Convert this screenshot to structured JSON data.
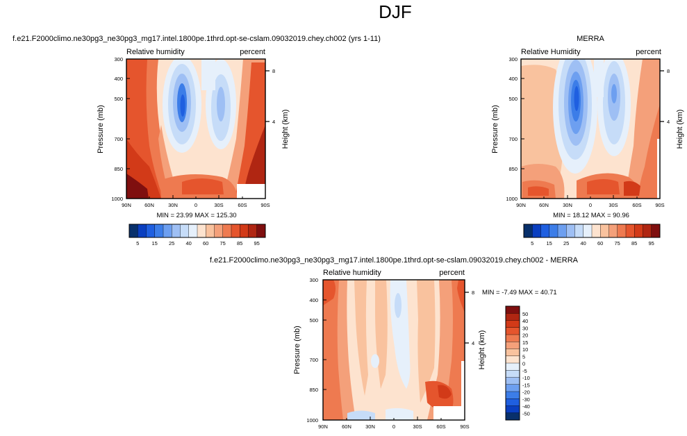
{
  "page_title": "DJF",
  "chart_data": [
    {
      "type": "heatmap",
      "title": "f.e21.F2000climo.ne30pg3_ne30pg3_mg17.intel.1800pe.1thrd.opt-se-cslam.09032019.chey.ch002 (yrs 1-11)",
      "left_label": "Relative humidity",
      "right_label": "percent",
      "ylabel": "Pressure (mb)",
      "y2label": "Height (km)",
      "x_ticks": [
        "90N",
        "60N",
        "30N",
        "0",
        "30S",
        "60S",
        "90S"
      ],
      "y_ticks": [
        "300",
        "400",
        "500",
        "700",
        "850",
        "1000"
      ],
      "y2_ticks": [
        "8",
        "4"
      ],
      "stats": "MIN = 23.99  MAX = 125.30",
      "colorbar_ticks": [
        "5",
        "15",
        "25",
        "40",
        "60",
        "75",
        "85",
        "95"
      ],
      "levels": [
        5,
        10,
        15,
        20,
        25,
        30,
        40,
        50,
        60,
        70,
        75,
        80,
        85,
        90,
        95
      ]
    },
    {
      "type": "heatmap",
      "title": "MERRA",
      "left_label": "Relative Humidity",
      "right_label": "percent",
      "ylabel": "Pressure (mb)",
      "y2label": "Height (km)",
      "x_ticks": [
        "90N",
        "60N",
        "30N",
        "0",
        "30S",
        "60S",
        "90S"
      ],
      "y_ticks": [
        "300",
        "400",
        "500",
        "700",
        "850",
        "1000"
      ],
      "y2_ticks": [
        "8",
        "4"
      ],
      "stats": "MIN = 18.12  MAX = 90.96",
      "colorbar_ticks": [
        "5",
        "15",
        "25",
        "40",
        "60",
        "75",
        "85",
        "95"
      ],
      "levels": [
        5,
        10,
        15,
        20,
        25,
        30,
        40,
        50,
        60,
        70,
        75,
        80,
        85,
        90,
        95
      ]
    },
    {
      "type": "heatmap",
      "title": "f.e21.F2000climo.ne30pg3_ne30pg3_mg17.intel.1800pe.1thrd.opt-se-cslam.09032019.chey.ch002 - MERRA",
      "left_label": "Relative humidity",
      "right_label": "percent",
      "ylabel": "Pressure (mb)",
      "y2label": "Height (km)",
      "x_ticks": [
        "90N",
        "60N",
        "30N",
        "0",
        "30S",
        "60S",
        "90S"
      ],
      "y_ticks": [
        "300",
        "400",
        "500",
        "700",
        "850",
        "1000"
      ],
      "y2_ticks": [
        "8",
        "4"
      ],
      "stats": "MIN = -7.49  MAX = 40.71",
      "colorbar_ticks": [
        "50",
        "40",
        "30",
        "20",
        "15",
        "10",
        "5",
        "0",
        "-5",
        "-10",
        "-15",
        "-20",
        "-30",
        "-40",
        "-50"
      ]
    }
  ],
  "colors": {
    "rh_scale": [
      "#08306b",
      "#0a3fc0",
      "#1f5fe0",
      "#3c7de8",
      "#6d9ff0",
      "#9ebff4",
      "#c6dcf8",
      "#e6f0fb",
      "#fde3cf",
      "#f9c29e",
      "#f4a07a",
      "#ee7a50",
      "#e5552d",
      "#d23a18",
      "#b02612",
      "#7f0f0f"
    ],
    "diff_scale": [
      "#08306b",
      "#0a3fc0",
      "#1f5fe0",
      "#3c7de8",
      "#6d9ff0",
      "#9ebff4",
      "#c6dcf8",
      "#e6f0fb",
      "#fde3cf",
      "#f9c29e",
      "#f4a07a",
      "#ee7a50",
      "#e5552d",
      "#d23a18",
      "#b02612",
      "#7f0f0f"
    ]
  }
}
